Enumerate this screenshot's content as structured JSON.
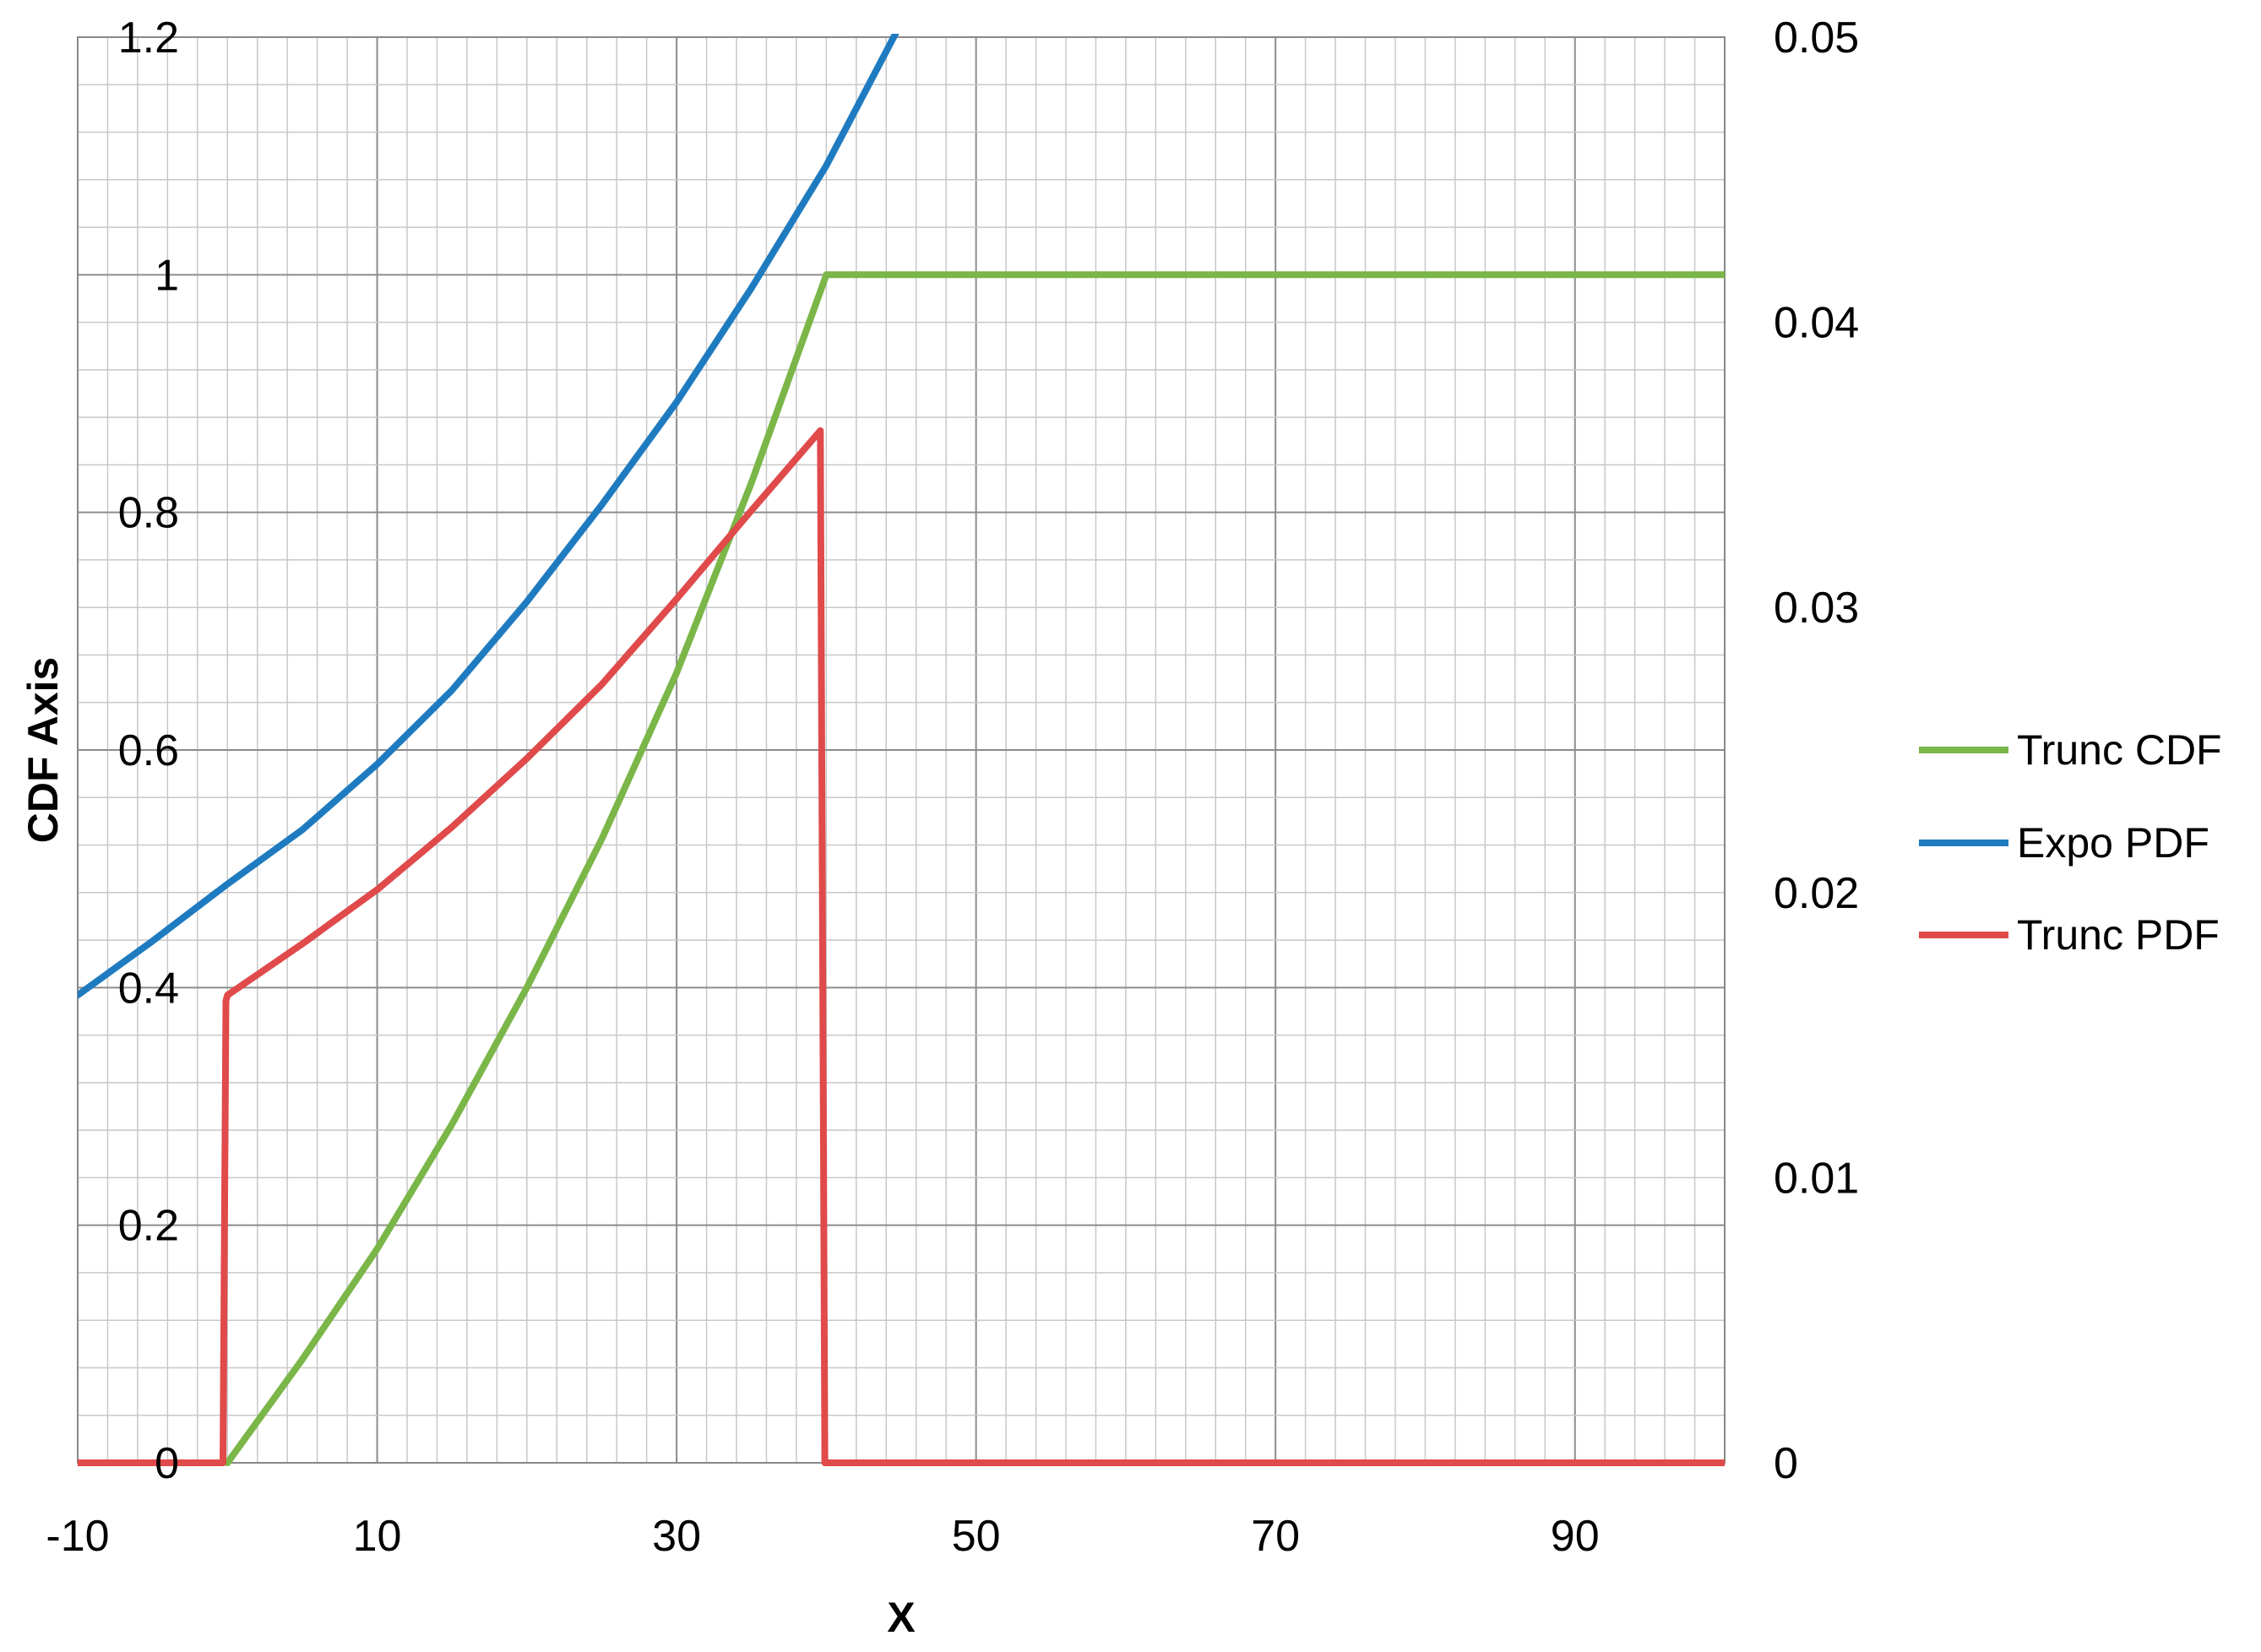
{
  "chart_data": {
    "type": "line",
    "xlabel": "X",
    "ylabel": "CDF Axis",
    "y2label": "",
    "xlim": [
      -10,
      100
    ],
    "ylim": [
      0,
      1.2
    ],
    "y2lim": [
      0,
      0.05
    ],
    "x_ticks": [
      -10,
      10,
      30,
      50,
      70,
      90
    ],
    "x_tick_labels": [
      "-10",
      "10",
      "30",
      "50",
      "70",
      "90"
    ],
    "y_ticks": [
      0,
      0.2,
      0.4,
      0.6,
      0.8,
      1,
      1.2
    ],
    "y_tick_labels": [
      "0",
      "0.2",
      "0.4",
      "0.6",
      "0.8",
      "1",
      "1.2"
    ],
    "y2_ticks": [
      0,
      0.01,
      0.02,
      0.03,
      0.04,
      0.05
    ],
    "y2_tick_labels": [
      "0",
      "0.01",
      "0.02",
      "0.03",
      "0.04",
      "0.05"
    ],
    "grid": true,
    "legend_position": "right",
    "series": [
      {
        "name": "Trunc CDF",
        "axis": "left",
        "color": "#7ab648",
        "x": [
          0,
          5,
          10,
          15,
          20,
          25,
          30,
          35,
          40,
          45,
          50,
          60,
          70,
          80,
          90,
          100
        ],
        "y": [
          0,
          0.087,
          0.18,
          0.285,
          0.4,
          0.525,
          0.665,
          0.825,
          1,
          1,
          1,
          1,
          1,
          1,
          1,
          1
        ]
      },
      {
        "name": "Expo PDF",
        "axis": "right",
        "color": "#1f7bc0",
        "x": [
          -10,
          -5,
          0,
          5,
          10,
          15,
          20,
          25,
          30,
          35,
          40,
          45,
          46
        ],
        "y": [
          0.0164,
          0.0183,
          0.0203,
          0.0222,
          0.0245,
          0.0271,
          0.0302,
          0.0336,
          0.0372,
          0.0412,
          0.0455,
          0.0505,
          0.0514
        ]
      },
      {
        "name": "Trunc PDF",
        "axis": "right",
        "color": "#e04a4a",
        "x": [
          -10,
          -0.3,
          -0.1,
          0,
          5,
          10,
          15,
          20,
          25,
          30,
          35,
          39.6,
          39.9,
          100
        ],
        "y": [
          0,
          0,
          0.0162,
          0.0164,
          0.0182,
          0.0201,
          0.0223,
          0.0247,
          0.0273,
          0.0303,
          0.0334,
          0.0362,
          0,
          0
        ]
      }
    ]
  }
}
